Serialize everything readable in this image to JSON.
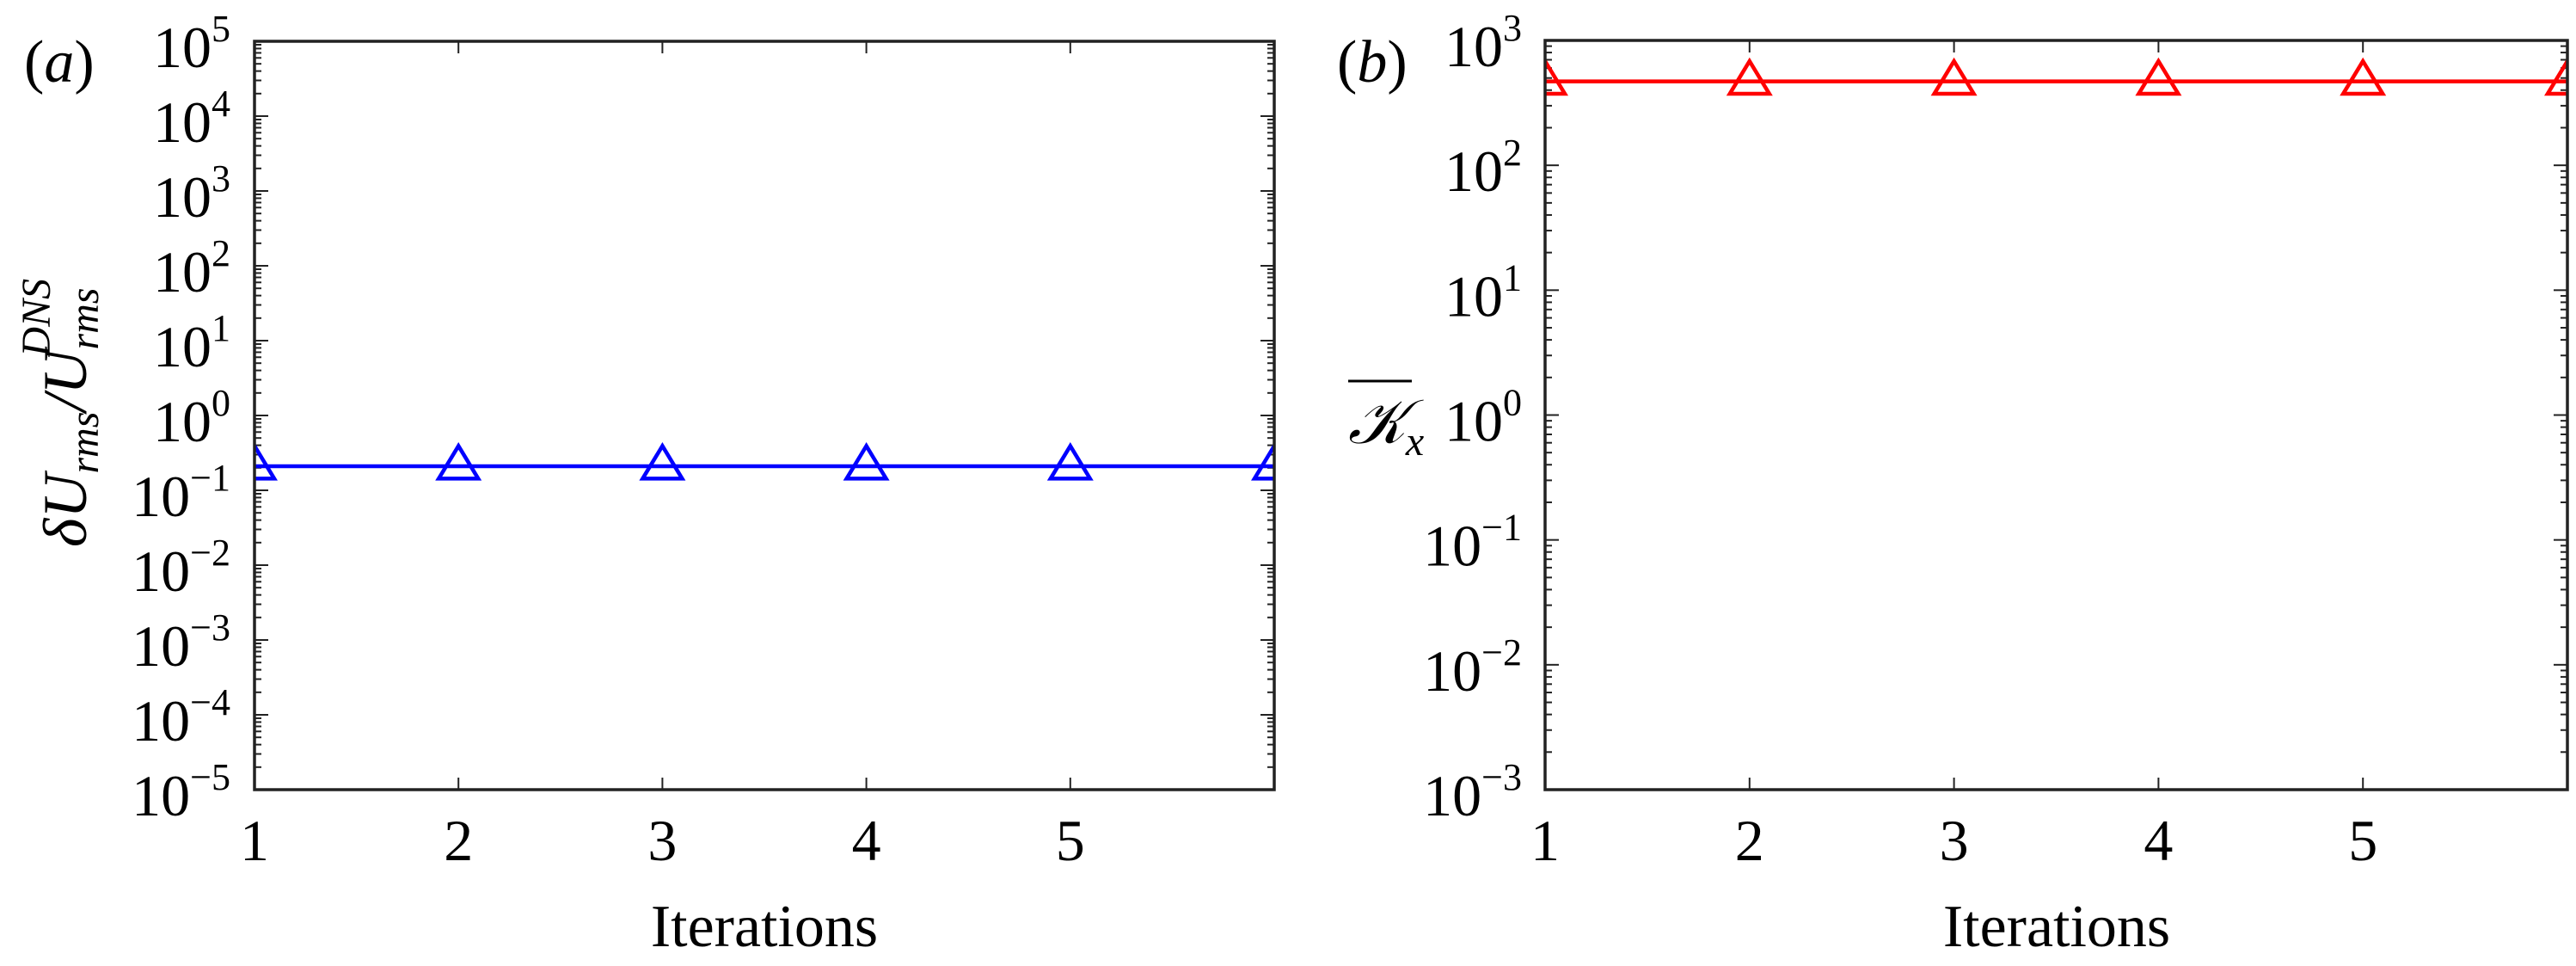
{
  "figure": {
    "panels": [
      {
        "id": "a",
        "panel_label": "(a)",
        "xlabel": "Iterations",
        "ylabel": {
          "main": "δU",
          "sub": "rms",
          "sep": "/",
          "main2": "U",
          "sub2": "rms",
          "sup2": "DNS"
        },
        "series_color": "#0000ff"
      },
      {
        "id": "b",
        "panel_label": "(b)",
        "xlabel": "Iterations",
        "ylabel": {
          "main": "𝒦",
          "sub": "x",
          "overline": true
        },
        "series_color": "#ff0000"
      }
    ]
  },
  "chart_data": [
    {
      "type": "line",
      "title": "(a)",
      "xlabel": "Iterations",
      "ylabel": "δU_rms / U_rms^DNS",
      "yscale": "log",
      "xlim": [
        1,
        6
      ],
      "ylim": [
        1e-05,
        100000.0
      ],
      "x_ticks": [
        1,
        2,
        3,
        4,
        5
      ],
      "x_tick_labels": [
        "1",
        "2",
        "3",
        "4",
        "5"
      ],
      "y_ticks_exponents": [
        5,
        4,
        3,
        2,
        1,
        0,
        -1,
        -2,
        -3,
        -4,
        -5
      ],
      "grid": false,
      "legend": null,
      "series": [
        {
          "name": "δU_rms/U_rms^DNS",
          "color": "#0000ff",
          "marker": "open-triangle",
          "x": [
            1,
            2,
            3,
            4,
            5,
            6
          ],
          "values": [
            0.21,
            0.21,
            0.21,
            0.21,
            0.21,
            0.21
          ]
        }
      ]
    },
    {
      "type": "line",
      "title": "(b)",
      "xlabel": "Iterations",
      "ylabel": "overline(K_x)",
      "yscale": "log",
      "xlim": [
        1,
        6
      ],
      "ylim": [
        0.001,
        1000.0
      ],
      "x_ticks": [
        1,
        2,
        3,
        4,
        5
      ],
      "x_tick_labels": [
        "1",
        "2",
        "3",
        "4",
        "5"
      ],
      "y_ticks_exponents": [
        3,
        2,
        1,
        0,
        -1,
        -2,
        -3
      ],
      "grid": false,
      "legend": null,
      "series": [
        {
          "name": "K_x (mean)",
          "color": "#ff0000",
          "marker": "open-triangle",
          "x": [
            1,
            2,
            3,
            4,
            5,
            6
          ],
          "values": [
            470,
            470,
            470,
            470,
            470,
            470
          ]
        }
      ]
    }
  ]
}
